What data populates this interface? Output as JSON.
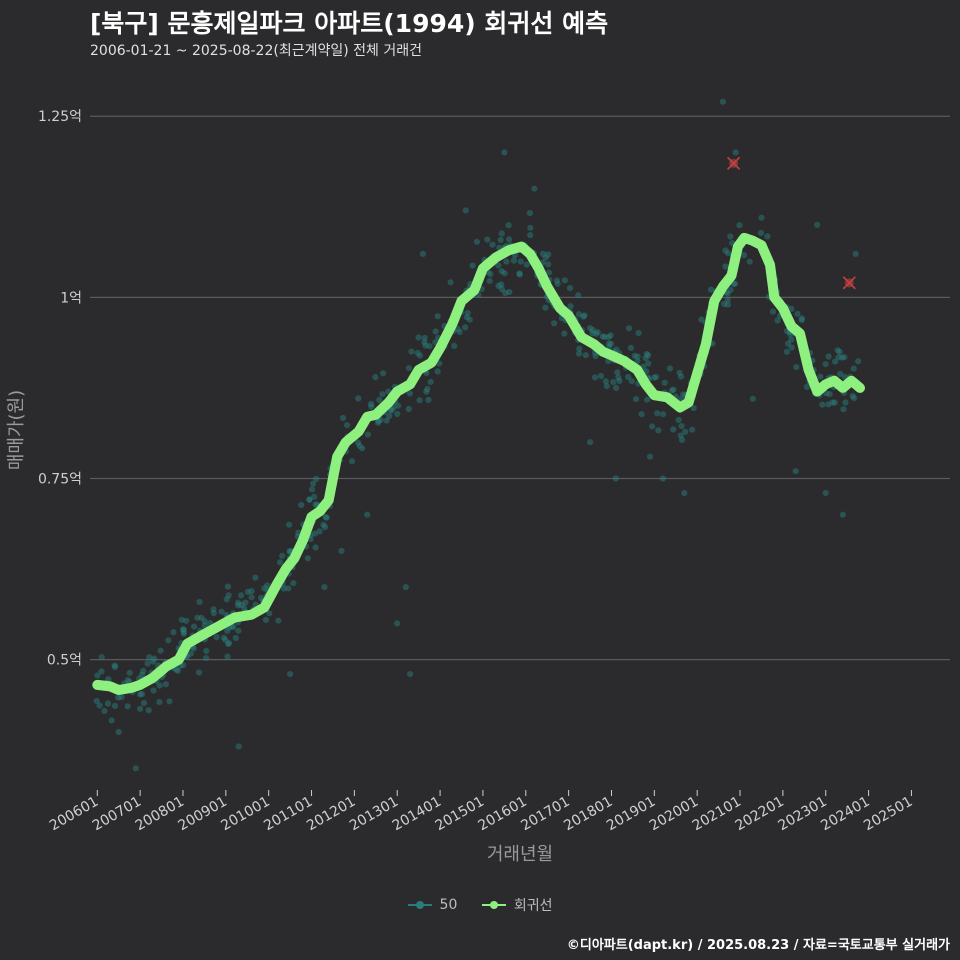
{
  "chart_data": {
    "type": "scatter",
    "title": "[북구] 문흥제일파크 아파트(1994) 회귀선 예측",
    "subtitle": "2006-01-21 ~ 2025-08-22(최근계약일) 전체 거래건",
    "xlabel": "거래년월",
    "ylabel": "매매가(원)",
    "ylim": [
      0.32,
      1.3
    ],
    "xlim": [
      2005.83,
      2025.9
    ],
    "y_ticks": [
      {
        "value": 0.5,
        "label": "0.5억"
      },
      {
        "value": 0.75,
        "label": "0.75억"
      },
      {
        "value": 1.0,
        "label": "1억"
      },
      {
        "value": 1.25,
        "label": "1.25억"
      }
    ],
    "x_ticks": [
      {
        "value": 2006.0,
        "label": "200601"
      },
      {
        "value": 2007.0,
        "label": "200701"
      },
      {
        "value": 2008.0,
        "label": "200801"
      },
      {
        "value": 2009.0,
        "label": "200901"
      },
      {
        "value": 2010.0,
        "label": "201001"
      },
      {
        "value": 2011.0,
        "label": "201101"
      },
      {
        "value": 2012.0,
        "label": "201201"
      },
      {
        "value": 2013.0,
        "label": "201301"
      },
      {
        "value": 2014.0,
        "label": "201401"
      },
      {
        "value": 2015.0,
        "label": "201501"
      },
      {
        "value": 2016.0,
        "label": "201601"
      },
      {
        "value": 2017.0,
        "label": "201701"
      },
      {
        "value": 2018.0,
        "label": "201801"
      },
      {
        "value": 2019.0,
        "label": "201901"
      },
      {
        "value": 2020.0,
        "label": "202001"
      },
      {
        "value": 2021.0,
        "label": "202101"
      },
      {
        "value": 2022.0,
        "label": "202201"
      },
      {
        "value": 2023.0,
        "label": "202301"
      },
      {
        "value": 2024.0,
        "label": "202401"
      },
      {
        "value": 2025.0,
        "label": "202501"
      }
    ],
    "trend_series": {
      "name": "회귀선",
      "color": "#8ef07f",
      "points": [
        [
          2006.0,
          0.465
        ],
        [
          2006.3,
          0.463
        ],
        [
          2006.5,
          0.458
        ],
        [
          2006.8,
          0.461
        ],
        [
          2007.0,
          0.465
        ],
        [
          2007.3,
          0.475
        ],
        [
          2007.6,
          0.49
        ],
        [
          2007.9,
          0.5
        ],
        [
          2008.1,
          0.522
        ],
        [
          2008.4,
          0.532
        ],
        [
          2008.8,
          0.545
        ],
        [
          2009.2,
          0.558
        ],
        [
          2009.6,
          0.562
        ],
        [
          2009.9,
          0.572
        ],
        [
          2010.2,
          0.605
        ],
        [
          2010.4,
          0.625
        ],
        [
          2010.6,
          0.64
        ],
        [
          2010.8,
          0.665
        ],
        [
          2011.0,
          0.697
        ],
        [
          2011.2,
          0.705
        ],
        [
          2011.4,
          0.72
        ],
        [
          2011.6,
          0.78
        ],
        [
          2011.8,
          0.8
        ],
        [
          2012.1,
          0.815
        ],
        [
          2012.3,
          0.835
        ],
        [
          2012.5,
          0.838
        ],
        [
          2012.8,
          0.855
        ],
        [
          2013.0,
          0.87
        ],
        [
          2013.3,
          0.88
        ],
        [
          2013.5,
          0.9
        ],
        [
          2013.8,
          0.91
        ],
        [
          2014.0,
          0.93
        ],
        [
          2014.3,
          0.965
        ],
        [
          2014.5,
          0.995
        ],
        [
          2014.8,
          1.01
        ],
        [
          2015.0,
          1.04
        ],
        [
          2015.3,
          1.055
        ],
        [
          2015.6,
          1.065
        ],
        [
          2015.9,
          1.07
        ],
        [
          2016.1,
          1.06
        ],
        [
          2016.3,
          1.04
        ],
        [
          2016.5,
          1.015
        ],
        [
          2016.8,
          0.985
        ],
        [
          2017.0,
          0.975
        ],
        [
          2017.3,
          0.945
        ],
        [
          2017.6,
          0.935
        ],
        [
          2017.8,
          0.925
        ],
        [
          2018.0,
          0.92
        ],
        [
          2018.3,
          0.912
        ],
        [
          2018.6,
          0.9
        ],
        [
          2018.8,
          0.88
        ],
        [
          2019.0,
          0.865
        ],
        [
          2019.3,
          0.862
        ],
        [
          2019.6,
          0.848
        ],
        [
          2019.8,
          0.855
        ],
        [
          2020.0,
          0.895
        ],
        [
          2020.2,
          0.935
        ],
        [
          2020.4,
          0.995
        ],
        [
          2020.6,
          1.015
        ],
        [
          2020.8,
          1.03
        ],
        [
          2020.95,
          1.07
        ],
        [
          2021.1,
          1.082
        ],
        [
          2021.3,
          1.078
        ],
        [
          2021.5,
          1.072
        ],
        [
          2021.7,
          1.045
        ],
        [
          2021.8,
          1.0
        ],
        [
          2022.0,
          0.985
        ],
        [
          2022.2,
          0.96
        ],
        [
          2022.4,
          0.95
        ],
        [
          2022.6,
          0.9
        ],
        [
          2022.8,
          0.87
        ],
        [
          2023.0,
          0.88
        ],
        [
          2023.2,
          0.885
        ],
        [
          2023.4,
          0.875
        ],
        [
          2023.6,
          0.885
        ],
        [
          2023.8,
          0.875
        ]
      ]
    },
    "points_series": {
      "name": "50",
      "color": "#2a7d7b",
      "count": 620,
      "spread_low": 0.042,
      "spread_high": 0.045,
      "outliers": [
        [
          2006.5,
          0.4
        ],
        [
          2006.9,
          0.35
        ],
        [
          2007.2,
          0.43
        ],
        [
          2009.3,
          0.38
        ],
        [
          2010.5,
          0.48
        ],
        [
          2011.3,
          0.6
        ],
        [
          2011.7,
          0.65
        ],
        [
          2012.3,
          0.7
        ],
        [
          2013.0,
          0.55
        ],
        [
          2013.2,
          0.6
        ],
        [
          2013.3,
          0.48
        ],
        [
          2013.6,
          1.06
        ],
        [
          2014.6,
          1.12
        ],
        [
          2015.5,
          1.2
        ],
        [
          2016.9,
          0.95
        ],
        [
          2017.5,
          0.8
        ],
        [
          2018.9,
          0.78
        ],
        [
          2019.2,
          0.75
        ],
        [
          2019.7,
          0.73
        ],
        [
          2020.6,
          1.27
        ],
        [
          2020.9,
          1.2
        ],
        [
          2021.5,
          1.11
        ],
        [
          2022.3,
          0.76
        ],
        [
          2022.8,
          1.1
        ],
        [
          2023.0,
          0.73
        ],
        [
          2023.4,
          0.7
        ],
        [
          2023.7,
          1.06
        ],
        [
          2021.3,
          0.86
        ],
        [
          2018.1,
          0.75
        ],
        [
          2016.2,
          1.15
        ]
      ],
      "highlighted": [
        [
          2020.85,
          1.185
        ],
        [
          2023.55,
          1.02
        ]
      ]
    },
    "legend": [
      "50",
      "회귀선"
    ],
    "legend_position": "bottom"
  },
  "caption": "©디아파트(dapt.kr) / 2025.08.23 / 자료=국토교통부 실거래가"
}
